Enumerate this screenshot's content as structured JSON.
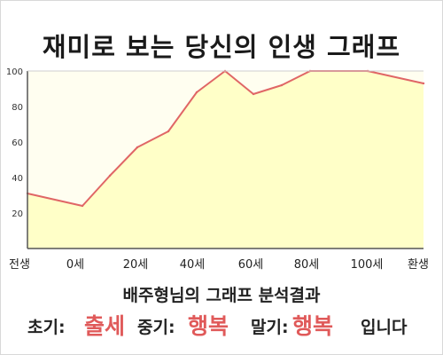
{
  "title": "재미로 보는 당신의 인생 그래프",
  "chart_data": {
    "type": "area",
    "title": "재미로 보는 당신의 인생 그래프",
    "x_tick_labels": [
      "전생",
      "0세",
      "20세",
      "40세",
      "60세",
      "80세",
      "100세",
      "환생"
    ],
    "y_ticks": [
      20,
      40,
      60,
      80,
      100
    ],
    "ylim": [
      0,
      100
    ],
    "grid": false,
    "series": [
      {
        "points": [
          {
            "x": "전생",
            "y": 31
          },
          {
            "x": "0세",
            "y": 24
          },
          {
            "x": "10세",
            "y": 41
          },
          {
            "x": "20세",
            "y": 57
          },
          {
            "x": "30세",
            "y": 66
          },
          {
            "x": "40세",
            "y": 88
          },
          {
            "x": "50세",
            "y": 100
          },
          {
            "x": "60세",
            "y": 87
          },
          {
            "x": "70세",
            "y": 92
          },
          {
            "x": "80세",
            "y": 100
          },
          {
            "x": "100세",
            "y": 100
          },
          {
            "x": "환생",
            "y": 93
          }
        ]
      }
    ],
    "colors": {
      "line": "#e06666",
      "fill": "#ffffc8",
      "axis": "#555555"
    }
  },
  "result": {
    "heading": "배주형님의 그래프 분석결과",
    "early_label": "초기:",
    "early_value": "출세",
    "mid_label": "중기:",
    "mid_value": "행복",
    "late_label": "말기:",
    "late_value": "행복",
    "ending": "입니다"
  },
  "accent_color": "#e05a5a"
}
